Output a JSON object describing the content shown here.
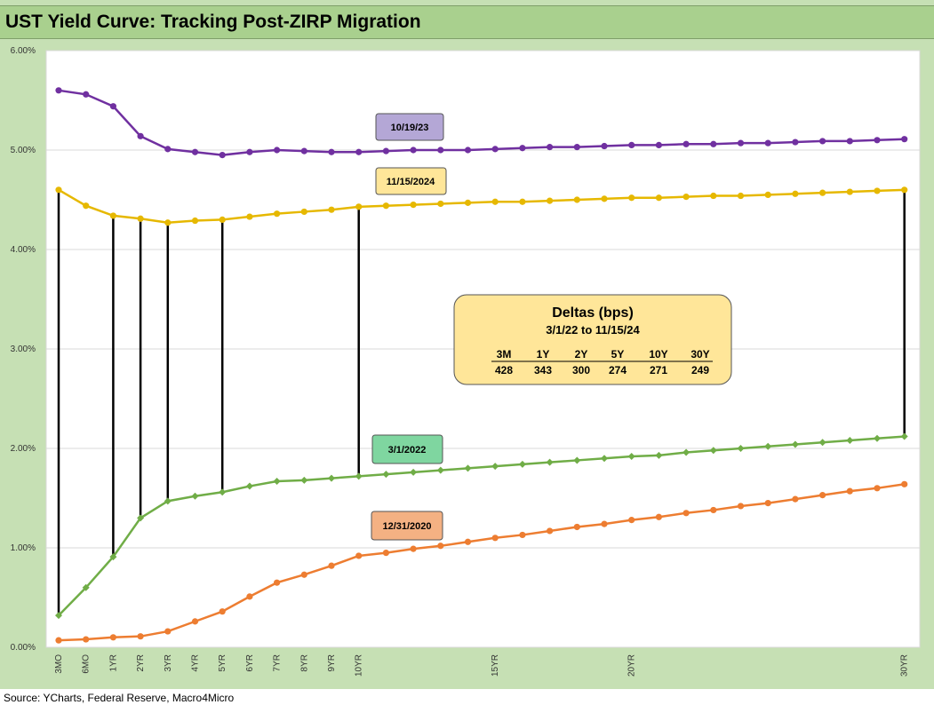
{
  "title": "UST Yield Curve: Tracking Post-ZIRP Migration",
  "source": "Source: YCharts, Federal Reserve, Macro4Micro",
  "chart_data": {
    "type": "line",
    "title": "UST Yield Curve: Tracking Post-ZIRP Migration",
    "ylim": [
      0,
      6
    ],
    "y_ticks": [
      "0.00%",
      "1.00%",
      "2.00%",
      "3.00%",
      "4.00%",
      "5.00%",
      "6.00%"
    ],
    "x_positions": 33,
    "x_tick_labels": [
      {
        "i": 0,
        "label": "3MO"
      },
      {
        "i": 1,
        "label": "6MO"
      },
      {
        "i": 2,
        "label": "1YR"
      },
      {
        "i": 3,
        "label": "2YR"
      },
      {
        "i": 4,
        "label": "3YR"
      },
      {
        "i": 5,
        "label": "4YR"
      },
      {
        "i": 6,
        "label": "5YR"
      },
      {
        "i": 7,
        "label": "6YR"
      },
      {
        "i": 8,
        "label": "7YR"
      },
      {
        "i": 9,
        "label": "8YR"
      },
      {
        "i": 10,
        "label": "9YR"
      },
      {
        "i": 11,
        "label": "10YR"
      },
      {
        "i": 16,
        "label": "15YR"
      },
      {
        "i": 21,
        "label": "20YR"
      },
      {
        "i": 31,
        "label": "30YR"
      }
    ],
    "grid": true,
    "series": [
      {
        "name": "10/19/23",
        "color": "#7030a0",
        "marker": "circle",
        "values": [
          5.6,
          5.56,
          5.44,
          5.14,
          5.01,
          4.98,
          4.95,
          4.98,
          5.0,
          4.99,
          4.98,
          4.98,
          4.99,
          5.0,
          5.0,
          5.0,
          5.01,
          5.02,
          5.03,
          5.03,
          5.04,
          5.05,
          5.05,
          5.06,
          5.06,
          5.07,
          5.07,
          5.08,
          5.09,
          5.09,
          5.1,
          5.11
        ]
      },
      {
        "name": "11/15/2024",
        "color": "#e6b800",
        "marker": "circle",
        "values": [
          4.6,
          4.44,
          4.34,
          4.31,
          4.27,
          4.29,
          4.3,
          4.33,
          4.36,
          4.38,
          4.4,
          4.43,
          4.44,
          4.45,
          4.46,
          4.47,
          4.48,
          4.48,
          4.49,
          4.5,
          4.51,
          4.52,
          4.52,
          4.53,
          4.54,
          4.54,
          4.55,
          4.56,
          4.57,
          4.58,
          4.59,
          4.6
        ]
      },
      {
        "name": "3/1/2022",
        "color": "#70ad47",
        "marker": "diamond",
        "values": [
          0.32,
          0.6,
          0.91,
          1.3,
          1.47,
          1.52,
          1.56,
          1.62,
          1.67,
          1.68,
          1.7,
          1.72,
          1.74,
          1.76,
          1.78,
          1.8,
          1.82,
          1.84,
          1.86,
          1.88,
          1.9,
          1.92,
          1.93,
          1.96,
          1.98,
          2.0,
          2.02,
          2.04,
          2.06,
          2.08,
          2.1,
          2.12
        ]
      },
      {
        "name": "12/31/2020",
        "color": "#ed7d31",
        "marker": "circle",
        "values": [
          0.07,
          0.08,
          0.1,
          0.11,
          0.16,
          0.26,
          0.36,
          0.51,
          0.65,
          0.73,
          0.82,
          0.92,
          0.95,
          0.99,
          1.02,
          1.06,
          1.1,
          1.13,
          1.17,
          1.21,
          1.24,
          1.28,
          1.31,
          1.35,
          1.38,
          1.42,
          1.45,
          1.49,
          1.53,
          1.57,
          1.6,
          1.64
        ]
      }
    ],
    "delta_lines": {
      "from_series": "3/1/2022",
      "to_series": "11/15/2024",
      "indices": [
        0,
        2,
        3,
        4,
        6,
        11,
        31
      ]
    },
    "annotation_box": {
      "title": "Deltas (bps)",
      "subtitle": "3/1/22  to 11/15/24",
      "headers": [
        "3M",
        "1Y",
        "2Y",
        "5Y",
        "10Y",
        "30Y"
      ],
      "values": [
        "428",
        "343",
        "300",
        "274",
        "271",
        "249"
      ],
      "fill": "#ffe699"
    },
    "series_labels": [
      {
        "text": "10/19/23",
        "fill": "#b4a7d6"
      },
      {
        "text": "11/15/2024",
        "fill": "#ffe699"
      },
      {
        "text": "3/1/2022",
        "fill": "#7fd6a0"
      },
      {
        "text": "12/31/2020",
        "fill": "#f4b183"
      }
    ]
  }
}
